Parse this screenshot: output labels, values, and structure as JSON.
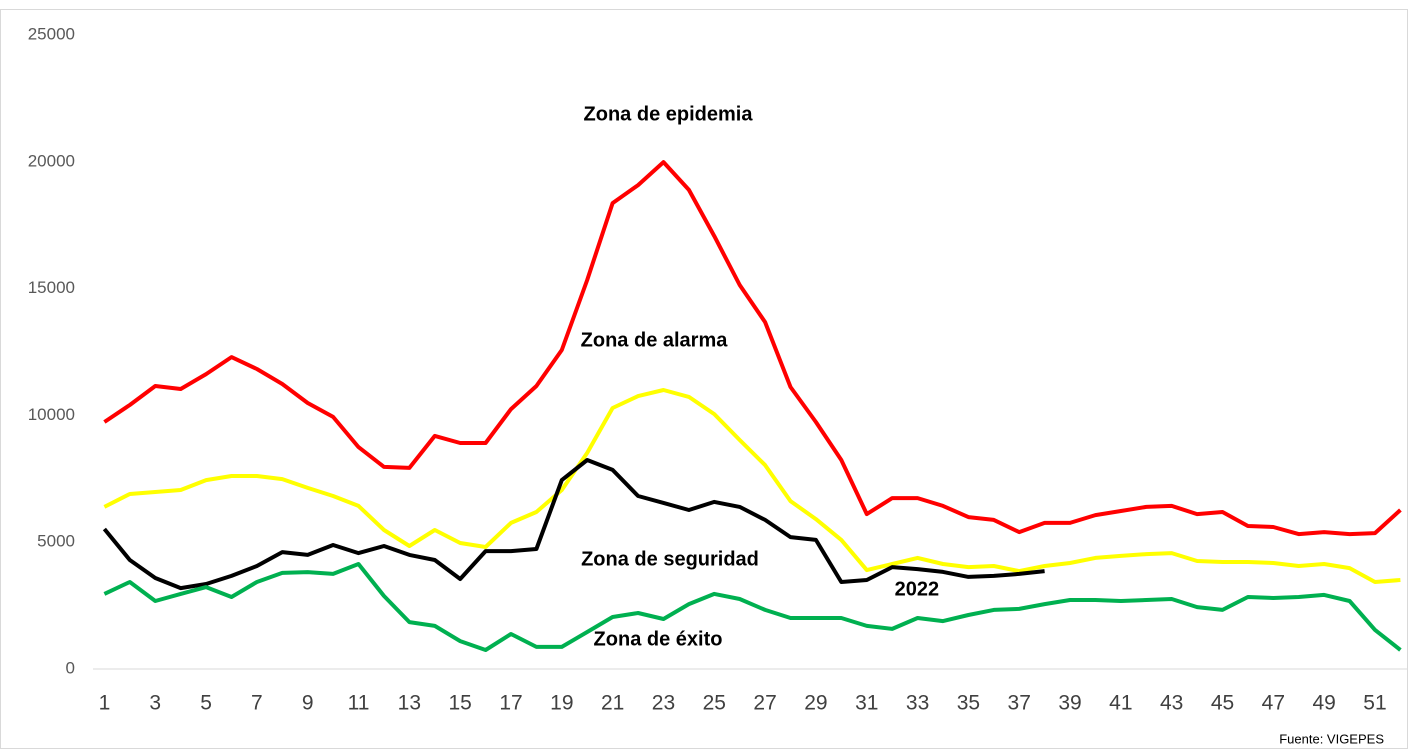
{
  "chart_data": {
    "type": "line",
    "annotations": [
      "Zona de epidemia",
      "Zona de alarma",
      "Zona de seguridad",
      "Zona de éxito"
    ],
    "source": "Fuente: VIGEPES",
    "x": [
      1,
      2,
      3,
      4,
      5,
      6,
      7,
      8,
      9,
      10,
      11,
      12,
      13,
      14,
      15,
      16,
      17,
      18,
      19,
      20,
      21,
      22,
      23,
      24,
      25,
      26,
      27,
      28,
      29,
      30,
      31,
      32,
      33,
      34,
      35,
      36,
      37,
      38,
      39,
      40,
      41,
      42,
      43,
      44,
      45,
      46,
      47,
      48,
      49,
      50,
      51,
      52
    ],
    "series": [
      {
        "color": "#ff0000",
        "values": [
          9740,
          10410,
          11160,
          11040,
          11630,
          12300,
          11830,
          11240,
          10490,
          9940,
          8750,
          7970,
          7930,
          9190,
          8910,
          8910,
          10250,
          11160,
          12580,
          15340,
          18370,
          19080,
          19990,
          18890,
          17070,
          15140,
          13680,
          11120,
          9740,
          8240,
          6110,
          6740,
          6740,
          6430,
          5990,
          5880,
          5400,
          5760,
          5760,
          6070,
          6230,
          6390,
          6430,
          6110,
          6190,
          5640,
          5600,
          5320,
          5400,
          5320,
          5360,
          6270
        ]
      },
      {
        "color": "#ffff00",
        "values": [
          6390,
          6900,
          6980,
          7060,
          7450,
          7610,
          7610,
          7490,
          7140,
          6820,
          6430,
          5480,
          4850,
          5480,
          4970,
          4810,
          5760,
          6190,
          7060,
          8520,
          10290,
          10760,
          11000,
          10730,
          10050,
          9030,
          8040,
          6620,
          5910,
          5090,
          3900,
          4140,
          4380,
          4140,
          4020,
          4060,
          3860,
          4060,
          4180,
          4380,
          4460,
          4530,
          4570,
          4260,
          4220,
          4220,
          4180,
          4060,
          4140,
          3980,
          3430,
          3510
        ]
      },
      {
        "name": "2022",
        "color": "#000000",
        "values": [
          5520,
          4300,
          3590,
          3190,
          3350,
          3670,
          4060,
          4610,
          4500,
          4890,
          4570,
          4850,
          4500,
          4300,
          3550,
          4650,
          4650,
          4730,
          7450,
          8240,
          7850,
          6820,
          6550,
          6270,
          6590,
          6390,
          5880,
          5200,
          5090,
          3430,
          3510,
          4020,
          3940,
          3830,
          3630,
          3670,
          3750,
          3860,
          null,
          null,
          null,
          null,
          null,
          null,
          null,
          null,
          null,
          null,
          null,
          null,
          null,
          null
        ]
      },
      {
        "color": "#00b050",
        "values": [
          2960,
          3430,
          2680,
          2960,
          3230,
          2840,
          3430,
          3790,
          3820,
          3750,
          4140,
          2880,
          1850,
          1700,
          1100,
          750,
          1380,
          870,
          870,
          1460,
          2050,
          2210,
          1970,
          2560,
          2960,
          2760,
          2330,
          2010,
          2010,
          2010,
          1700,
          1580,
          2010,
          1890,
          2130,
          2330,
          2370,
          2560,
          2720,
          2720,
          2680,
          2720,
          2760,
          2440,
          2330,
          2840,
          2800,
          2840,
          2920,
          2680,
          1540,
          750
        ]
      }
    ],
    "xlim": [
      0.55,
      52.3
    ],
    "xticks": [
      1,
      3,
      5,
      7,
      9,
      11,
      13,
      15,
      17,
      19,
      21,
      23,
      25,
      27,
      29,
      31,
      33,
      35,
      37,
      39,
      41,
      43,
      45,
      47,
      49,
      51
    ],
    "ylim": [
      0,
      25000
    ],
    "yticks": [
      0,
      5000,
      10000,
      15000,
      20000,
      25000
    ],
    "grid": false
  }
}
